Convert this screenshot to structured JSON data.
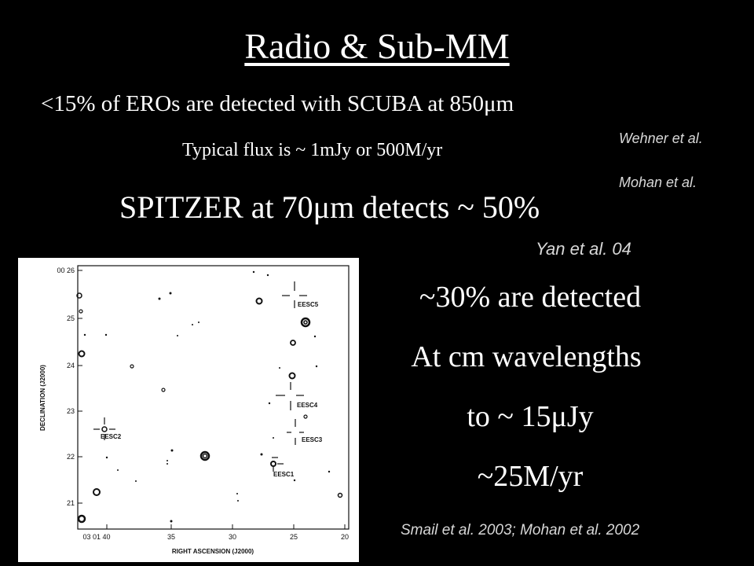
{
  "slide": {
    "title": "Radio & Sub-MM",
    "line1": "<15% of EROs are detected with SCUBA at 850μm",
    "line2": "Typical flux is ~ 1mJy or 500M/yr",
    "line3": "SPITZER at 70μm detects ~ 50%",
    "ref_wehner": "Wehner et al.",
    "ref_mohan": "Mohan et al.",
    "ref_yan": "Yan et al. 04",
    "right_lines": [
      "~30% are detected",
      "At cm wavelengths",
      "to ~ 15μJy",
      "~25M/yr"
    ],
    "ref_smail": "Smail et al. 2003; Mohan et al. 2002"
  },
  "figure": {
    "y_axis_label": "DECLINATION (J2000)",
    "x_axis_label": "RIGHT ASCENSION (J2000)",
    "y_ticks": [
      "00 26",
      "25",
      "24",
      "23",
      "22",
      "21"
    ],
    "x_ticks": [
      "03 01 40",
      "35",
      "30",
      "25",
      "20"
    ],
    "sources": [
      "EESC5",
      "EESC4",
      "EESC3",
      "EESC2",
      "EESC1"
    ]
  }
}
